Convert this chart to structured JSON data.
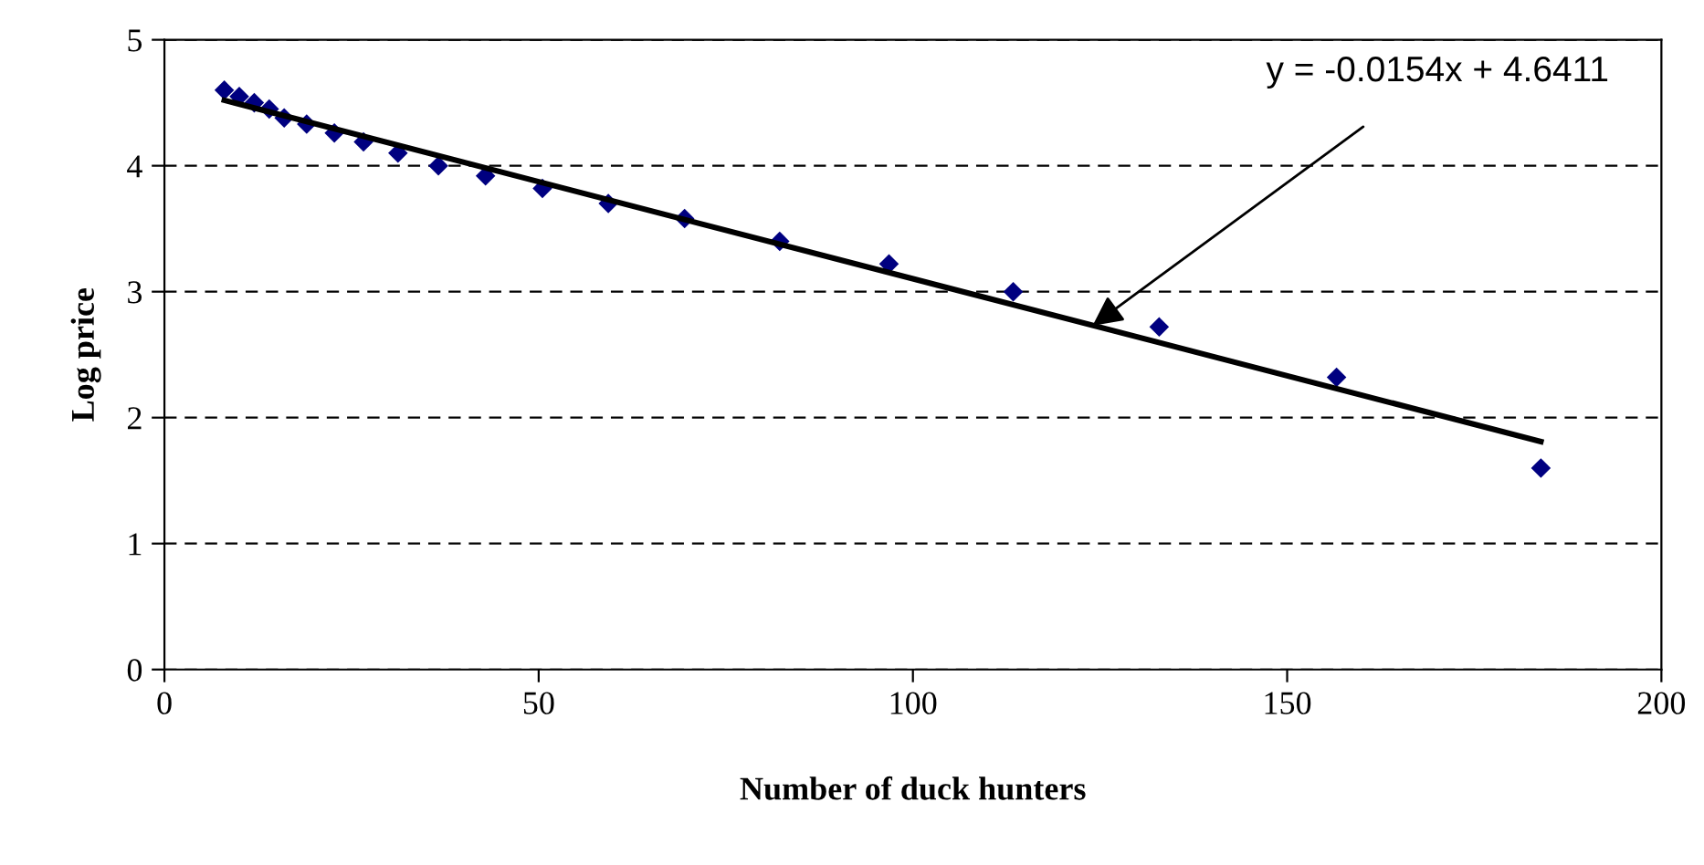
{
  "chart_data": {
    "type": "scatter",
    "xlabel": "Number of duck hunters",
    "ylabel": "Log price",
    "xlim": [
      0,
      200
    ],
    "xticks": [
      0,
      50,
      100,
      150,
      200
    ],
    "ylim": [
      0,
      5
    ],
    "yticks": [
      0,
      1,
      2,
      3,
      4,
      5
    ],
    "grid": "y",
    "series": [
      {
        "marker": "diamond",
        "color": "#000080",
        "x": [
          8,
          10,
          12,
          14,
          16,
          19,
          22.7,
          26.6,
          31.2,
          36.6,
          42.9,
          50.5,
          59.3,
          69.5,
          82.2,
          96.8,
          113.4,
          132.9,
          156.6,
          183.9
        ],
        "values": [
          4.6,
          4.55,
          4.5,
          4.45,
          4.38,
          4.33,
          4.26,
          4.19,
          4.1,
          4.0,
          3.92,
          3.82,
          3.7,
          3.58,
          3.4,
          3.22,
          3.0,
          2.72,
          2.32,
          1.6
        ]
      },
      {
        "type": "line",
        "marker": "none",
        "color": "#000000",
        "line_style": "solid",
        "x": [
          8,
          183.9
        ],
        "values": [
          4.52,
          1.81
        ]
      }
    ],
    "annotations": [
      {
        "text": "y = -0.0154x + 4.6411",
        "x": 124,
        "y": 2.73
      }
    ]
  }
}
